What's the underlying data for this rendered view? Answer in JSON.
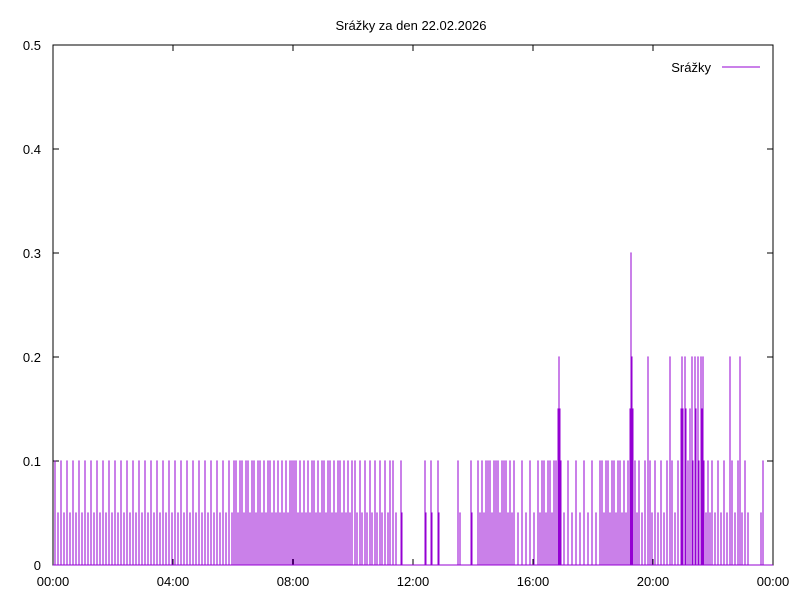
{
  "chart_data": {
    "type": "line",
    "title": "Srážky za den 22.02.2026",
    "xlabel": "",
    "ylabel": "",
    "x_range_minutes": [
      0,
      1440
    ],
    "ylim": [
      0,
      0.5
    ],
    "x_ticks": [
      "00:00",
      "04:00",
      "08:00",
      "12:00",
      "16:00",
      "20:00",
      "00:00"
    ],
    "y_ticks": [
      "0",
      "0.1",
      "0.2",
      "0.3",
      "0.4",
      "0.5"
    ],
    "grid": false,
    "legend_position": "top-right",
    "series": [
      {
        "name": "Srážky",
        "color": "#9400d3",
        "points": [
          [
            "00:04",
            0.1
          ],
          [
            "00:10",
            0.05
          ],
          [
            "00:16",
            0.1
          ],
          [
            "00:22",
            0.05
          ],
          [
            "00:28",
            0.1
          ],
          [
            "00:34",
            0.05
          ],
          [
            "00:40",
            0.1
          ],
          [
            "00:46",
            0.05
          ],
          [
            "00:52",
            0.1
          ],
          [
            "00:58",
            0.05
          ],
          [
            "01:04",
            0.1
          ],
          [
            "01:10",
            0.05
          ],
          [
            "01:16",
            0.1
          ],
          [
            "01:22",
            0.05
          ],
          [
            "01:28",
            0.1
          ],
          [
            "01:34",
            0.05
          ],
          [
            "01:40",
            0.1
          ],
          [
            "01:46",
            0.05
          ],
          [
            "01:52",
            0.1
          ],
          [
            "01:58",
            0.05
          ],
          [
            "02:04",
            0.1
          ],
          [
            "02:10",
            0.05
          ],
          [
            "02:16",
            0.1
          ],
          [
            "02:22",
            0.05
          ],
          [
            "02:28",
            0.1
          ],
          [
            "02:34",
            0.05
          ],
          [
            "02:40",
            0.1
          ],
          [
            "02:46",
            0.05
          ],
          [
            "02:52",
            0.1
          ],
          [
            "02:58",
            0.05
          ],
          [
            "03:04",
            0.1
          ],
          [
            "03:10",
            0.05
          ],
          [
            "03:16",
            0.1
          ],
          [
            "03:22",
            0.05
          ],
          [
            "03:28",
            0.1
          ],
          [
            "03:34",
            0.05
          ],
          [
            "03:40",
            0.1
          ],
          [
            "03:46",
            0.05
          ],
          [
            "03:52",
            0.1
          ],
          [
            "03:58",
            0.05
          ],
          [
            "04:04",
            0.1
          ],
          [
            "04:10",
            0.05
          ],
          [
            "04:16",
            0.1
          ],
          [
            "04:22",
            0.05
          ],
          [
            "04:28",
            0.1
          ],
          [
            "04:34",
            0.05
          ],
          [
            "04:40",
            0.1
          ],
          [
            "04:46",
            0.05
          ],
          [
            "04:52",
            0.1
          ],
          [
            "04:58",
            0.05
          ],
          [
            "05:04",
            0.1
          ],
          [
            "05:10",
            0.05
          ],
          [
            "05:16",
            0.1
          ],
          [
            "05:22",
            0.05
          ],
          [
            "05:28",
            0.1
          ],
          [
            "05:34",
            0.05
          ],
          [
            "05:40",
            0.1
          ],
          [
            "05:46",
            0.05
          ],
          [
            "05:52",
            0.1
          ],
          [
            "05:58",
            0.05
          ],
          [
            "06:02",
            0.1
          ],
          [
            "06:06",
            0.1
          ],
          [
            "06:10",
            0.05
          ],
          [
            "06:14",
            0.1
          ],
          [
            "06:18",
            0.1
          ],
          [
            "06:22",
            0.05
          ],
          [
            "06:26",
            0.1
          ],
          [
            "06:30",
            0.1
          ],
          [
            "06:34",
            0.05
          ],
          [
            "06:38",
            0.1
          ],
          [
            "06:42",
            0.1
          ],
          [
            "06:46",
            0.05
          ],
          [
            "06:50",
            0.1
          ],
          [
            "06:54",
            0.1
          ],
          [
            "06:58",
            0.05
          ],
          [
            "07:02",
            0.1
          ],
          [
            "07:06",
            0.05
          ],
          [
            "07:10",
            0.1
          ],
          [
            "07:14",
            0.1
          ],
          [
            "07:18",
            0.05
          ],
          [
            "07:22",
            0.1
          ],
          [
            "07:26",
            0.05
          ],
          [
            "07:30",
            0.1
          ],
          [
            "07:34",
            0.05
          ],
          [
            "07:38",
            0.1
          ],
          [
            "07:42",
            0.05
          ],
          [
            "07:46",
            0.1
          ],
          [
            "07:50",
            0.05
          ],
          [
            "07:54",
            0.1
          ],
          [
            "07:58",
            0.1
          ],
          [
            "08:02",
            0.1
          ],
          [
            "08:06",
            0.1
          ],
          [
            "08:10",
            0.05
          ],
          [
            "08:14",
            0.1
          ],
          [
            "08:18",
            0.05
          ],
          [
            "08:22",
            0.1
          ],
          [
            "08:26",
            0.05
          ],
          [
            "08:30",
            0.1
          ],
          [
            "08:34",
            0.05
          ],
          [
            "08:38",
            0.1
          ],
          [
            "08:42",
            0.1
          ],
          [
            "08:46",
            0.05
          ],
          [
            "08:50",
            0.1
          ],
          [
            "08:54",
            0.05
          ],
          [
            "08:58",
            0.1
          ],
          [
            "09:02",
            0.1
          ],
          [
            "09:06",
            0.05
          ],
          [
            "09:10",
            0.1
          ],
          [
            "09:14",
            0.1
          ],
          [
            "09:18",
            0.05
          ],
          [
            "09:22",
            0.1
          ],
          [
            "09:26",
            0.05
          ],
          [
            "09:30",
            0.1
          ],
          [
            "09:34",
            0.1
          ],
          [
            "09:38",
            0.05
          ],
          [
            "09:42",
            0.1
          ],
          [
            "09:46",
            0.05
          ],
          [
            "09:50",
            0.1
          ],
          [
            "09:54",
            0.05
          ],
          [
            "09:58",
            0.1
          ],
          [
            "10:04",
            0.1
          ],
          [
            "10:08",
            0.05
          ],
          [
            "10:14",
            0.1
          ],
          [
            "10:18",
            0.05
          ],
          [
            "10:24",
            0.1
          ],
          [
            "10:28",
            0.05
          ],
          [
            "10:34",
            0.1
          ],
          [
            "10:38",
            0.05
          ],
          [
            "10:44",
            0.1
          ],
          [
            "10:48",
            0.05
          ],
          [
            "10:54",
            0.1
          ],
          [
            "10:58",
            0.05
          ],
          [
            "11:04",
            0.1
          ],
          [
            "11:10",
            0.05
          ],
          [
            "11:14",
            0.1
          ],
          [
            "11:20",
            0.1
          ],
          [
            "11:26",
            0.05
          ],
          [
            "11:36",
            0.1
          ],
          [
            "11:38",
            0.05
          ],
          [
            "12:24",
            0.1
          ],
          [
            "12:26",
            0.05
          ],
          [
            "12:36",
            0.1
          ],
          [
            "12:38",
            0.05
          ],
          [
            "12:50",
            0.1
          ],
          [
            "12:52",
            0.05
          ],
          [
            "13:30",
            0.1
          ],
          [
            "13:34",
            0.05
          ],
          [
            "13:56",
            0.1
          ],
          [
            "13:58",
            0.05
          ],
          [
            "14:10",
            0.1
          ],
          [
            "14:14",
            0.05
          ],
          [
            "14:18",
            0.1
          ],
          [
            "14:22",
            0.05
          ],
          [
            "14:26",
            0.1
          ],
          [
            "14:30",
            0.1
          ],
          [
            "14:34",
            0.1
          ],
          [
            "14:38",
            0.05
          ],
          [
            "14:42",
            0.1
          ],
          [
            "14:46",
            0.1
          ],
          [
            "14:50",
            0.1
          ],
          [
            "14:54",
            0.05
          ],
          [
            "14:58",
            0.1
          ],
          [
            "15:02",
            0.1
          ],
          [
            "15:06",
            0.1
          ],
          [
            "15:10",
            0.05
          ],
          [
            "15:14",
            0.1
          ],
          [
            "15:18",
            0.05
          ],
          [
            "15:22",
            0.1
          ],
          [
            "15:30",
            0.05
          ],
          [
            "15:38",
            0.1
          ],
          [
            "15:46",
            0.05
          ],
          [
            "15:54",
            0.1
          ],
          [
            "16:02",
            0.05
          ],
          [
            "16:10",
            0.1
          ],
          [
            "16:14",
            0.05
          ],
          [
            "16:18",
            0.1
          ],
          [
            "16:22",
            0.1
          ],
          [
            "16:26",
            0.05
          ],
          [
            "16:30",
            0.1
          ],
          [
            "16:34",
            0.1
          ],
          [
            "16:38",
            0.05
          ],
          [
            "16:42",
            0.1
          ],
          [
            "16:46",
            0.1
          ],
          [
            "16:50",
            0.15
          ],
          [
            "16:52",
            0.2
          ],
          [
            "16:54",
            0.15
          ],
          [
            "16:56",
            0.1
          ],
          [
            "17:02",
            0.05
          ],
          [
            "17:10",
            0.1
          ],
          [
            "17:18",
            0.05
          ],
          [
            "17:26",
            0.1
          ],
          [
            "17:34",
            0.05
          ],
          [
            "17:42",
            0.1
          ],
          [
            "17:50",
            0.05
          ],
          [
            "17:58",
            0.1
          ],
          [
            "18:06",
            0.05
          ],
          [
            "18:14",
            0.1
          ],
          [
            "18:18",
            0.1
          ],
          [
            "18:22",
            0.05
          ],
          [
            "18:26",
            0.1
          ],
          [
            "18:30",
            0.1
          ],
          [
            "18:34",
            0.05
          ],
          [
            "18:38",
            0.1
          ],
          [
            "18:42",
            0.1
          ],
          [
            "18:46",
            0.05
          ],
          [
            "18:50",
            0.1
          ],
          [
            "18:54",
            0.1
          ],
          [
            "18:58",
            0.05
          ],
          [
            "19:02",
            0.1
          ],
          [
            "19:06",
            0.05
          ],
          [
            "19:10",
            0.1
          ],
          [
            "19:14",
            0.15
          ],
          [
            "19:16",
            0.3
          ],
          [
            "19:18",
            0.2
          ],
          [
            "19:20",
            0.15
          ],
          [
            "19:24",
            0.1
          ],
          [
            "19:28",
            0.05
          ],
          [
            "19:32",
            0.1
          ],
          [
            "19:38",
            0.05
          ],
          [
            "19:44",
            0.1
          ],
          [
            "19:50",
            0.2
          ],
          [
            "19:54",
            0.1
          ],
          [
            "19:58",
            0.05
          ],
          [
            "20:04",
            0.1
          ],
          [
            "20:10",
            0.05
          ],
          [
            "20:16",
            0.1
          ],
          [
            "20:22",
            0.05
          ],
          [
            "20:28",
            0.1
          ],
          [
            "20:34",
            0.2
          ],
          [
            "20:38",
            0.1
          ],
          [
            "20:44",
            0.05
          ],
          [
            "20:50",
            0.1
          ],
          [
            "20:56",
            0.15
          ],
          [
            "20:58",
            0.2
          ],
          [
            "21:00",
            0.15
          ],
          [
            "21:04",
            0.2
          ],
          [
            "21:06",
            0.15
          ],
          [
            "21:10",
            0.1
          ],
          [
            "21:14",
            0.15
          ],
          [
            "21:18",
            0.2
          ],
          [
            "21:20",
            0.1
          ],
          [
            "21:24",
            0.2
          ],
          [
            "21:26",
            0.15
          ],
          [
            "21:30",
            0.2
          ],
          [
            "21:32",
            0.1
          ],
          [
            "21:36",
            0.2
          ],
          [
            "21:38",
            0.15
          ],
          [
            "21:40",
            0.2
          ],
          [
            "21:42",
            0.1
          ],
          [
            "21:46",
            0.05
          ],
          [
            "21:50",
            0.1
          ],
          [
            "21:54",
            0.05
          ],
          [
            "21:58",
            0.1
          ],
          [
            "22:04",
            0.05
          ],
          [
            "22:10",
            0.1
          ],
          [
            "22:16",
            0.05
          ],
          [
            "22:22",
            0.1
          ],
          [
            "22:28",
            0.05
          ],
          [
            "22:34",
            0.2
          ],
          [
            "22:38",
            0.1
          ],
          [
            "22:44",
            0.05
          ],
          [
            "22:50",
            0.1
          ],
          [
            "22:54",
            0.2
          ],
          [
            "22:58",
            0.05
          ],
          [
            "23:04",
            0.1
          ],
          [
            "23:10",
            0.05
          ],
          [
            "23:36",
            0.05
          ],
          [
            "23:40",
            0.1
          ]
        ]
      }
    ]
  }
}
